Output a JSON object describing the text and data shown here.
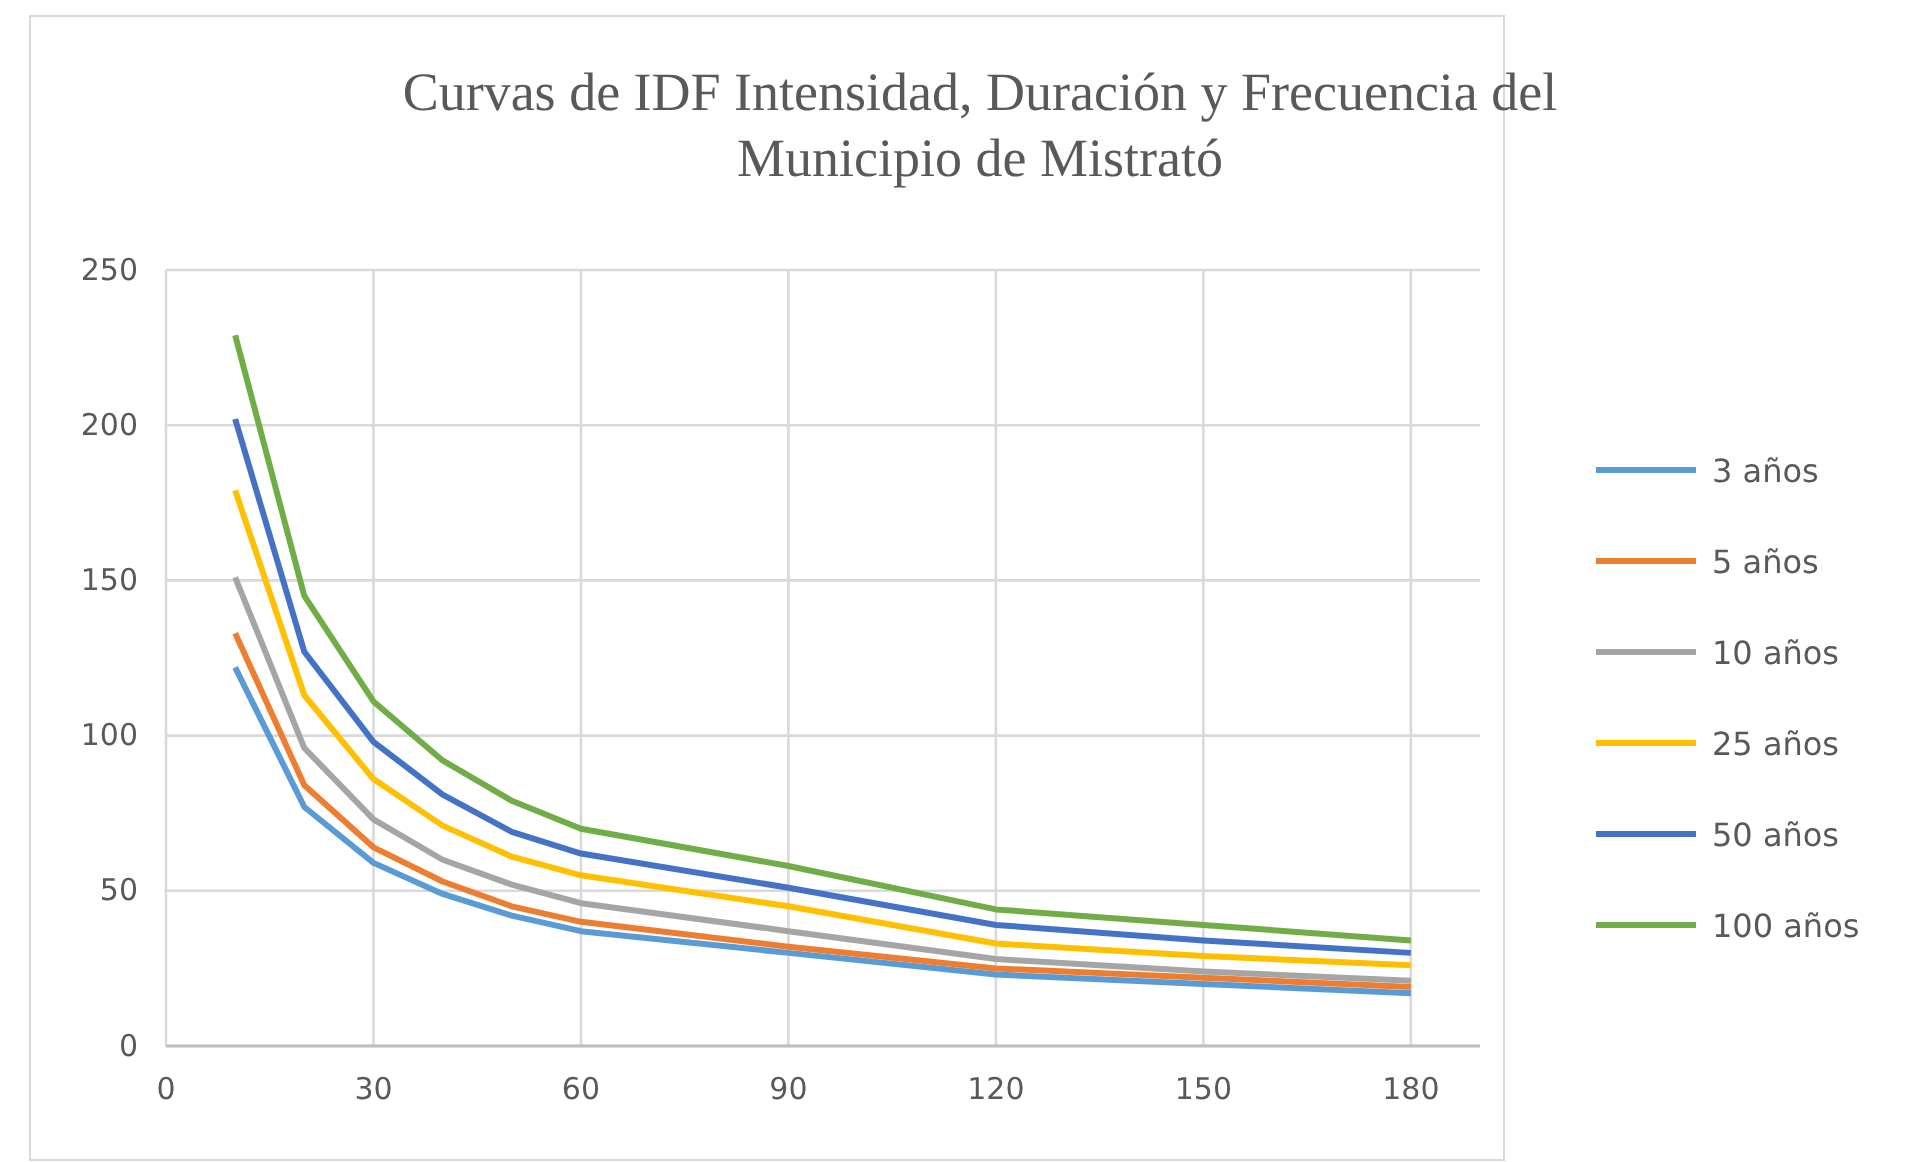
{
  "chart_data": {
    "type": "line",
    "title": "Curvas de IDF Intensidad, Duración y Frecuencia del\nMunicipio de Mistrató",
    "x": [
      10,
      20,
      30,
      40,
      50,
      60,
      90,
      120,
      150,
      180
    ],
    "xlim": [
      0,
      190
    ],
    "xticks": [
      0,
      30,
      60,
      90,
      120,
      150,
      180
    ],
    "ylim": [
      0,
      250
    ],
    "yticks": [
      0,
      50,
      100,
      150,
      200,
      250
    ],
    "grid": true,
    "legend": "right",
    "marker": "none",
    "line_style": "solid",
    "series": [
      {
        "name": "3 años",
        "color": "#5b9bd5",
        "values": [
          122,
          77,
          59,
          49,
          42,
          37,
          30,
          23,
          20,
          17
        ]
      },
      {
        "name": "5 años",
        "color": "#ed7d31",
        "values": [
          133,
          84,
          64,
          53,
          45,
          40,
          32,
          25,
          22,
          19
        ]
      },
      {
        "name": "10 años",
        "color": "#a5a5a5",
        "values": [
          151,
          96,
          73,
          60,
          52,
          46,
          37,
          28,
          24,
          21
        ]
      },
      {
        "name": "25 años",
        "color": "#ffc000",
        "values": [
          179,
          113,
          86,
          71,
          61,
          55,
          45,
          33,
          29,
          26
        ]
      },
      {
        "name": "50 años",
        "color": "#4472c4",
        "values": [
          202,
          127,
          98,
          81,
          69,
          62,
          51,
          39,
          34,
          30
        ]
      },
      {
        "name": "100 años",
        "color": "#70ad47",
        "values": [
          229,
          145,
          111,
          92,
          79,
          70,
          58,
          44,
          39,
          34
        ]
      }
    ]
  }
}
